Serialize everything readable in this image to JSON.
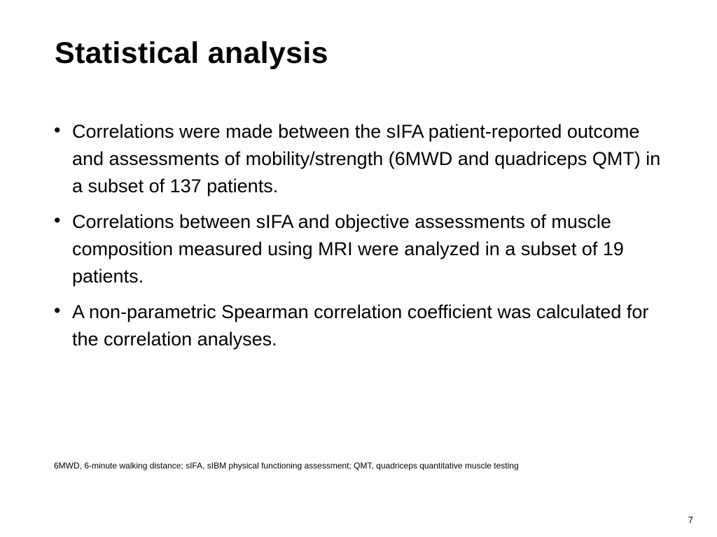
{
  "slide": {
    "title": "Statistical analysis",
    "bullet_marker": "•",
    "bullets": [
      "Correlations were made between the sIFA patient-reported outcome and assessments of mobility/strength (6MWD and quadriceps QMT) in a subset of 137 patients.",
      "Correlations between sIFA and objective assessments of muscle composition measured using MRI were analyzed in a subset of 19 patients.",
      "A non-parametric Spearman correlation coefficient was calculated for the correlation analyses."
    ],
    "footnote": "6MWD, 6-minute walking distance; sIFA, sIBM physical functioning assessment; QMT, quadriceps quantitative muscle testing",
    "page_number": "7"
  }
}
